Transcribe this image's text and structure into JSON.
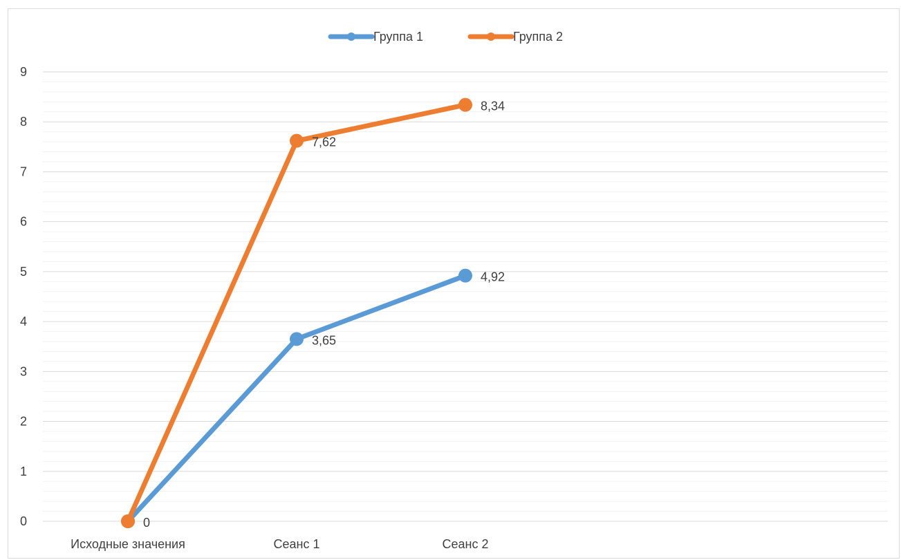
{
  "chart_data": {
    "type": "line",
    "title": "",
    "xlabel": "",
    "ylabel": "",
    "categories": [
      "Исходные значения",
      "Сеанс 1",
      "Сеанс 2"
    ],
    "ylim": [
      0,
      9
    ],
    "y_major_step": 1,
    "y_minor_step": 0.2,
    "grid": true,
    "legend_position": "top",
    "series": [
      {
        "name": "Группа 1",
        "color": "#5B9BD5",
        "values": [
          0,
          3.65,
          4.92
        ],
        "labels": [
          "",
          "3,65",
          "4,92"
        ]
      },
      {
        "name": "Группа 2",
        "color": "#ED7D31",
        "values": [
          0,
          7.62,
          8.34
        ],
        "labels": [
          "0",
          "7,62",
          "8,34"
        ]
      }
    ]
  }
}
